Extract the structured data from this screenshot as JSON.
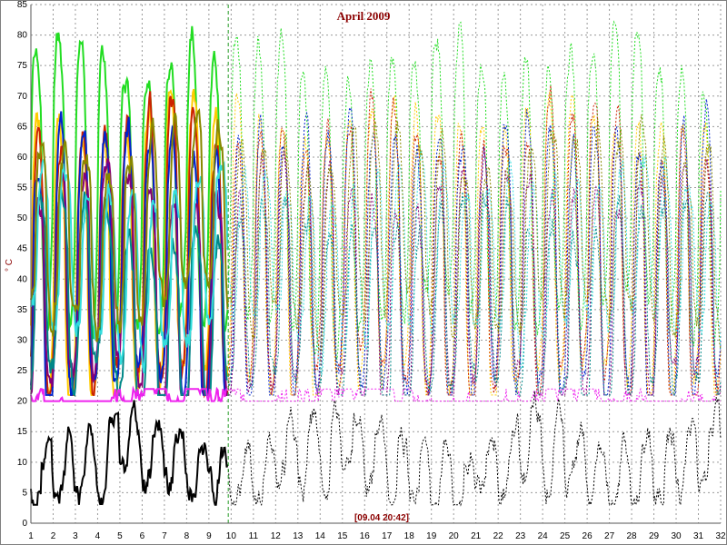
{
  "chart_data": {
    "type": "line",
    "title": "April 2009",
    "ylabel": "° C",
    "xlabel": "",
    "cursor_label": "[09.04 20:42]",
    "cursor_day": 9.87,
    "xlim": [
      1,
      32
    ],
    "ylim": [
      0,
      85
    ],
    "x_ticks": [
      "1",
      "2",
      "3",
      "4",
      "5",
      "6",
      "7",
      "8",
      "9",
      "10",
      "11",
      "12",
      "13",
      "14",
      "15",
      "16",
      "17",
      "18",
      "19",
      "20",
      "21",
      "22",
      "23",
      "24",
      "25",
      "26",
      "27",
      "28",
      "29",
      "30",
      "31",
      "32"
    ],
    "y_ticks": [
      "0",
      "5",
      "10",
      "15",
      "20",
      "25",
      "30",
      "35",
      "40",
      "45",
      "50",
      "55",
      "60",
      "65",
      "70",
      "75",
      "80",
      "85"
    ],
    "grid": true,
    "series": [
      {
        "color": "#22dd22",
        "mean": 55,
        "amp": 22,
        "period": 1.0,
        "phase": 0.0,
        "seed": 1,
        "minv": 21,
        "maxv": 84
      },
      {
        "color": "#ffcc00",
        "mean": 44,
        "amp": 22,
        "period": 1.0,
        "phase": 0.05,
        "seed": 2,
        "minv": 21,
        "maxv": 78
      },
      {
        "color": "#cc2200",
        "mean": 44,
        "amp": 21,
        "period": 1.0,
        "phase": 0.08,
        "seed": 3,
        "minv": 21,
        "maxv": 76
      },
      {
        "color": "#0022cc",
        "mean": 42,
        "amp": 21,
        "period": 1.0,
        "phase": 0.1,
        "seed": 4,
        "minv": 21,
        "maxv": 74
      },
      {
        "color": "#880077",
        "mean": 38,
        "amp": 17,
        "period": 1.0,
        "phase": 0.14,
        "seed": 5,
        "minv": 21,
        "maxv": 66
      },
      {
        "color": "#008888",
        "mean": 35,
        "amp": 15,
        "period": 1.0,
        "phase": 0.18,
        "seed": 6,
        "minv": 21,
        "maxv": 62
      },
      {
        "color": "#33dddd",
        "mean": 44,
        "amp": 12,
        "period": 1.0,
        "phase": 0.3,
        "seed": 7,
        "minv": 24,
        "maxv": 63
      },
      {
        "color": "#888800",
        "mean": 48,
        "amp": 14,
        "period": 1.0,
        "phase": 0.22,
        "seed": 8,
        "minv": 24,
        "maxv": 74
      },
      {
        "color": "#ee22ee",
        "mean": 21,
        "amp": 0.5,
        "period": 1.0,
        "phase": 0.0,
        "seed": 9,
        "minv": 20,
        "maxv": 22
      },
      {
        "color": "#000000",
        "mean": 10,
        "amp": 5,
        "period": 1.0,
        "phase": 0.45,
        "seed": 10,
        "minv": 3,
        "maxv": 22
      }
    ]
  }
}
